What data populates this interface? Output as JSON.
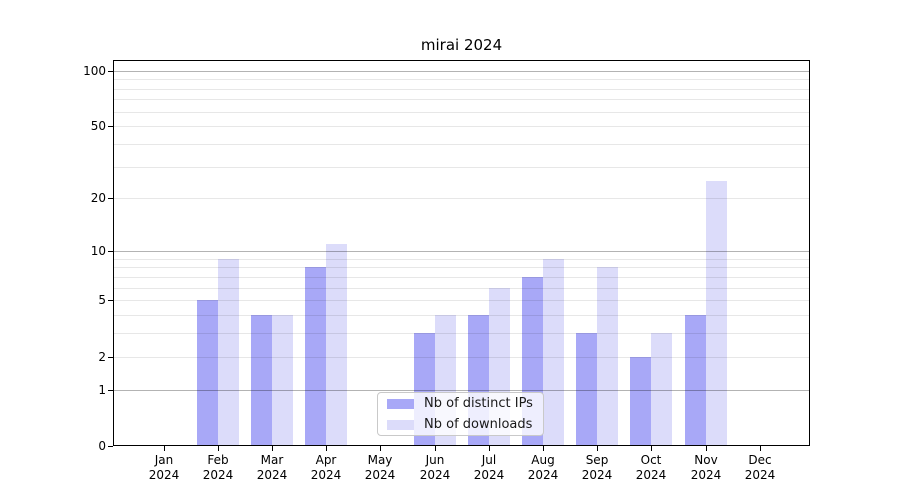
{
  "title": "mirai 2024",
  "chart_data": {
    "type": "bar",
    "title": "mirai 2024",
    "categories": [
      "Jan",
      "Feb",
      "Mar",
      "Apr",
      "May",
      "Jun",
      "Jul",
      "Aug",
      "Sep",
      "Oct",
      "Nov",
      "Dec"
    ],
    "category_year": "2024",
    "series": [
      {
        "name": "Nb of distinct IPs",
        "color": "#a8a8f7",
        "values": [
          0,
          5,
          4,
          8,
          0,
          3,
          4,
          7,
          3,
          2,
          4,
          0
        ]
      },
      {
        "name": "Nb of downloads",
        "color": "#dcdcfa",
        "values": [
          0,
          9,
          4,
          11,
          0,
          4,
          6,
          9,
          8,
          3,
          25,
          0
        ]
      }
    ],
    "xlabel": "",
    "ylabel": "",
    "yscale": "log1p",
    "ylim": [
      0,
      114
    ],
    "y_tick_labels": [
      0,
      1,
      2,
      5,
      10,
      20,
      50,
      100
    ],
    "y_major_gridlines": [
      1,
      10,
      100
    ],
    "y_minor_gridlines": [
      2,
      3,
      4,
      5,
      6,
      7,
      8,
      9,
      20,
      30,
      40,
      50,
      60,
      70,
      80,
      90
    ],
    "grid": true,
    "legend_position": "lower-center"
  },
  "colors": {
    "grid_major": "#b3b3b3",
    "grid_minor": "#e7e7e7",
    "spine": "#000000",
    "legend_border": "#c9c9c9"
  }
}
